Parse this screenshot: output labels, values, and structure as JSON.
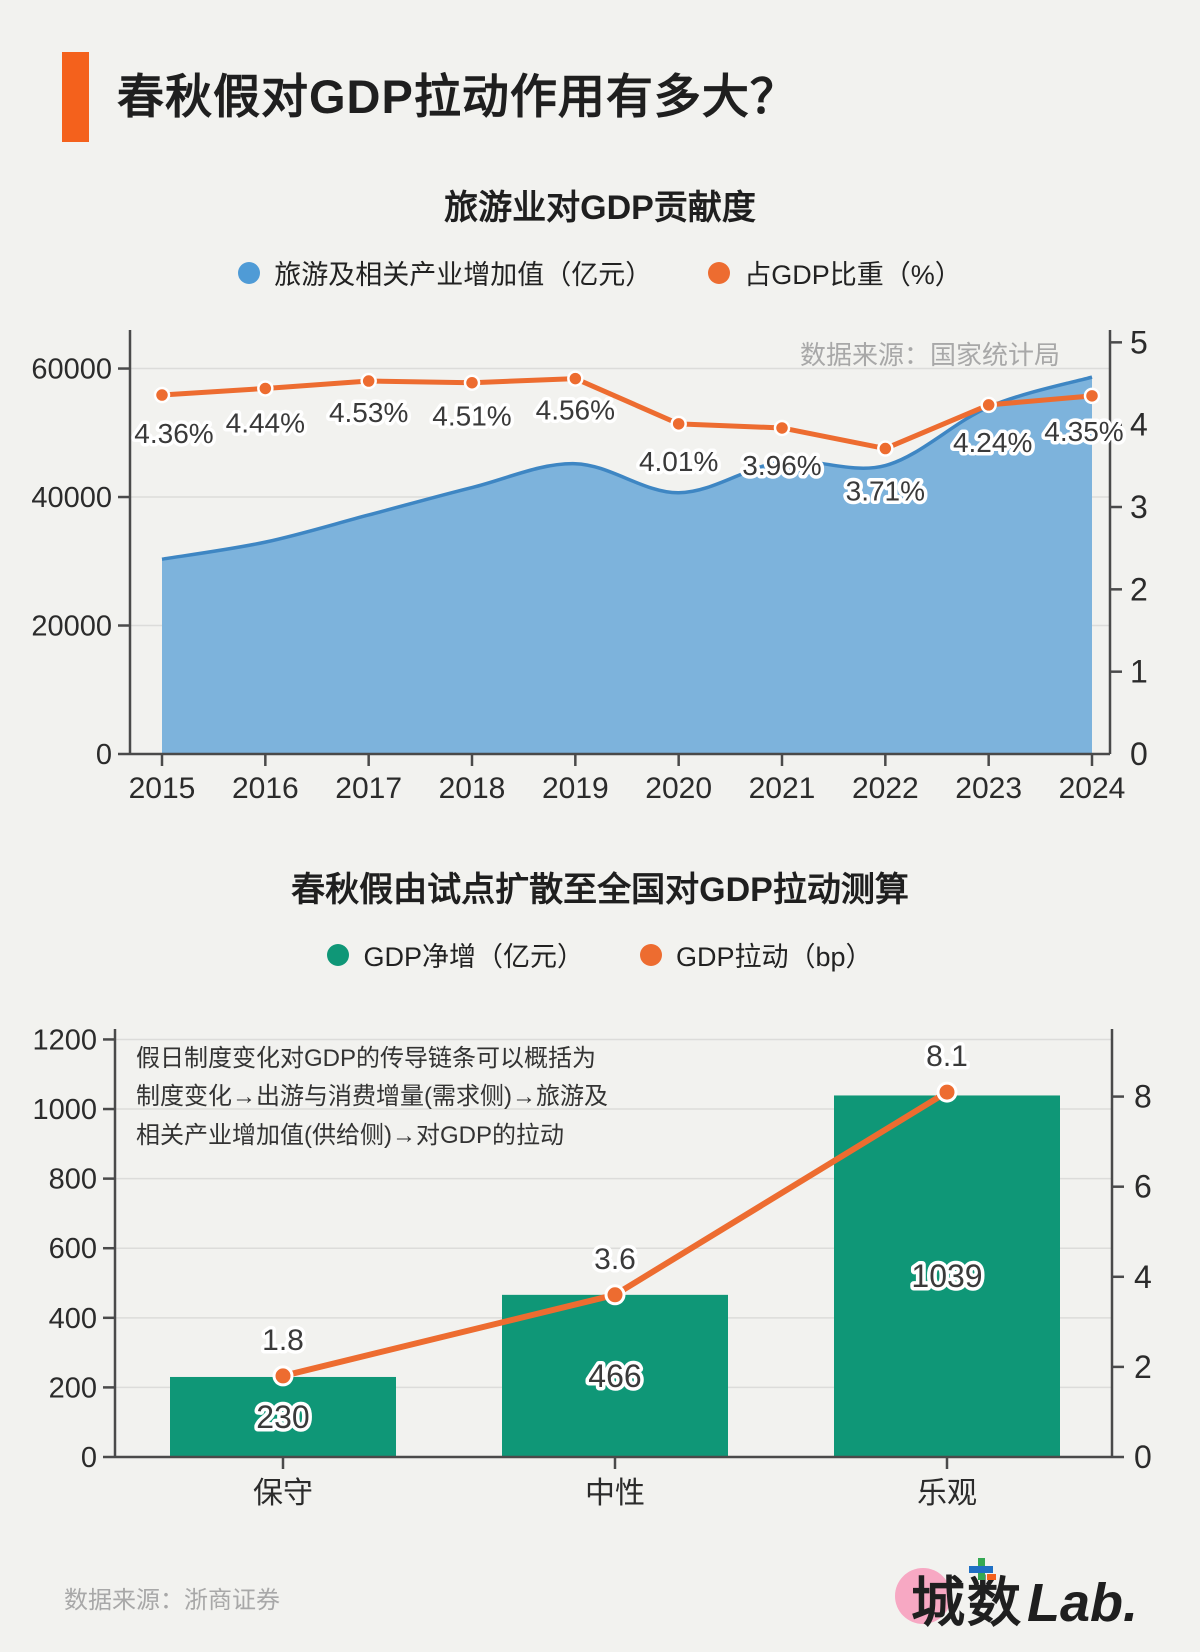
{
  "header": {
    "title": "春秋假对GDP拉动作用有多大？"
  },
  "footer": {
    "source": "数据来源：浙商证券",
    "logo_cn": "城数",
    "logo_en": "Lab."
  },
  "colors": {
    "accent": "#f4611c",
    "blue_fill": "#7db3dc",
    "blue_stroke": "#3e86c3",
    "blue_dot": "#4f9bd6",
    "orange": "#ed6c30",
    "green": "#0f9777",
    "grid": "#dcdcda",
    "axis": "#4a4a4a",
    "tick_text": "#2b2b2b",
    "label_text": "#3a3a3a",
    "muted": "#a8a8a8",
    "bg": "#f2f2ef",
    "pink": "#f7a8c3"
  },
  "chart_data": [
    {
      "type": "area-line-combo",
      "title": "旅游业对GDP贡献度",
      "source_note": "数据来源：国家统计局",
      "legend": [
        {
          "label": "旅游及相关产业增加值（亿元）",
          "color_key": "blue_dot"
        },
        {
          "label": "占GDP比重（%）",
          "color_key": "orange"
        }
      ],
      "x": [
        "2015",
        "2016",
        "2017",
        "2018",
        "2019",
        "2020",
        "2021",
        "2022",
        "2023",
        "2024"
      ],
      "series": [
        {
          "name": "旅游及相关产业增加值（亿元）",
          "type": "area",
          "axis": "left",
          "values": [
            30320,
            32980,
            37210,
            41480,
            45190,
            40660,
            45500,
            44900,
            54020,
            58680
          ]
        },
        {
          "name": "占GDP比重（%）",
          "type": "line",
          "axis": "right",
          "values": [
            4.36,
            4.44,
            4.53,
            4.51,
            4.56,
            4.01,
            3.96,
            3.71,
            4.24,
            4.35
          ],
          "labels": [
            "4.36%",
            "4.44%",
            "4.53%",
            "4.51%",
            "4.56%",
            "4.01%",
            "3.96%",
            "3.71%",
            "4.24%",
            "4.35%"
          ]
        }
      ],
      "left_axis": {
        "ticks": [
          0,
          20000,
          40000,
          60000
        ],
        "max": 66000
      },
      "right_axis": {
        "ticks": [
          0,
          1,
          2,
          3,
          4,
          5
        ],
        "max": 5.15
      },
      "grid": true,
      "legend_position": "top"
    },
    {
      "type": "bar-line-combo",
      "title": "春秋假由试点扩散至全国对GDP拉动测算",
      "legend": [
        {
          "label": "GDP净增（亿元）",
          "color_key": "green"
        },
        {
          "label": "GDP拉动（bp）",
          "color_key": "orange"
        }
      ],
      "categories": [
        "保守",
        "中性",
        "乐观"
      ],
      "series": [
        {
          "name": "GDP净增（亿元）",
          "type": "bar",
          "axis": "left",
          "values": [
            230,
            466,
            1039
          ],
          "labels": [
            "230",
            "466",
            "1039"
          ]
        },
        {
          "name": "GDP拉动（bp）",
          "type": "line",
          "axis": "right",
          "values": [
            1.8,
            3.6,
            8.1
          ],
          "labels": [
            "1.8",
            "3.6",
            "8.1"
          ]
        }
      ],
      "annotation": "假日制度变化对GDP的传导链条可以概括为\n制度变化→出游与消费增量(需求侧)→旅游及\n相关产业增加值(供给侧)→对GDP的拉动",
      "left_axis": {
        "ticks": [
          0,
          200,
          400,
          600,
          800,
          1000,
          1200
        ],
        "max": 1230
      },
      "right_axis": {
        "ticks": [
          0,
          2,
          4,
          6,
          8
        ],
        "max": 9.5
      },
      "grid": true,
      "legend_position": "top"
    }
  ]
}
